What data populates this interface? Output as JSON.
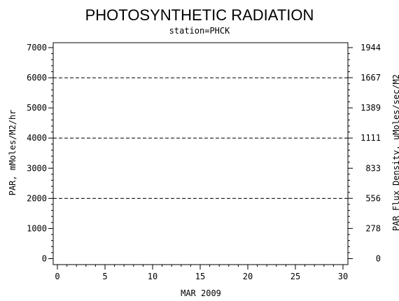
{
  "chart_data": {
    "type": "line",
    "title": "PHOTOSYNTHETIC RADIATION",
    "subtitle": "station=PHCK",
    "xlabel": "MAR 2009",
    "ylabel": "PAR, mMoles/M2/hr",
    "y2label": "PAR Flux Density, uMoles/sec/M2",
    "xlim": [
      0,
      30
    ],
    "ylim": [
      0,
      7000
    ],
    "y2lim": [
      0,
      1944
    ],
    "x_ticks": [
      0,
      5,
      10,
      15,
      20,
      25,
      30
    ],
    "y_ticks": [
      0,
      1000,
      2000,
      3000,
      4000,
      5000,
      6000,
      7000
    ],
    "y2_ticks": [
      {
        "label": "0",
        "value": 0
      },
      {
        "label": "278",
        "value": 278
      },
      {
        "label": "556",
        "value": 556
      },
      {
        "label": "833",
        "value": 833
      },
      {
        "label": "1111",
        "value": 1111
      },
      {
        "label": "1389",
        "value": 1389
      },
      {
        "label": "1667",
        "value": 1667
      },
      {
        "label": "1944",
        "value": 1944
      }
    ],
    "reference_lines_y": [
      2000,
      4000,
      6000
    ],
    "series": []
  }
}
